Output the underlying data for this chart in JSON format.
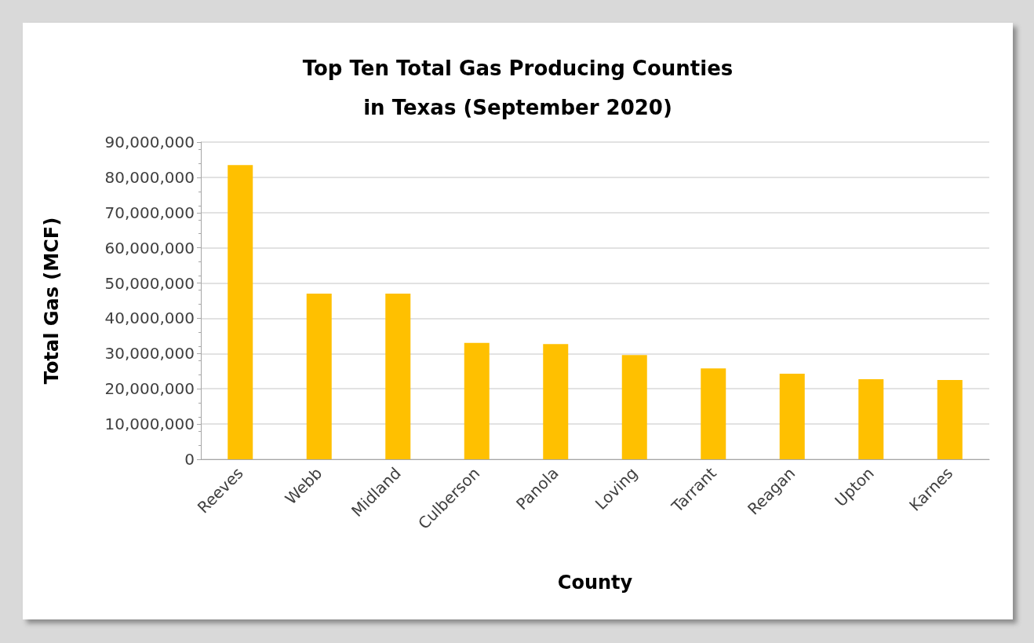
{
  "chart_data": {
    "type": "bar",
    "title": "Top Ten Total Gas Producing Counties\nin Texas (September 2020)",
    "xlabel": "County",
    "ylabel": "Total Gas (MCF)",
    "categories": [
      "Reeves",
      "Webb",
      "Midland",
      "Culberson",
      "Panola",
      "Loving",
      "Tarrant",
      "Reagan",
      "Upton",
      "Karnes"
    ],
    "values": [
      83500000,
      47000000,
      47000000,
      33000000,
      32700000,
      29600000,
      25800000,
      24300000,
      22700000,
      22500000
    ],
    "color": "#ffc000",
    "ylim": [
      0,
      90000000
    ],
    "yticks": [
      0,
      {
        "value": 10000000,
        "label": "10,000,000"
      },
      {
        "value": 20000000,
        "label": "20,000,000"
      },
      {
        "value": 30000000,
        "label": "30,000,000"
      },
      {
        "value": 40000000,
        "label": "40,000,000"
      },
      {
        "value": 50000000,
        "label": "50,000,000"
      },
      {
        "value": 60000000,
        "label": "60,000,000"
      },
      {
        "value": 70000000,
        "label": "70,000,000"
      },
      {
        "value": 80000000,
        "label": "80,000,000"
      },
      {
        "value": 90000000,
        "label": "90,000,000"
      }
    ],
    "grid": "y"
  }
}
